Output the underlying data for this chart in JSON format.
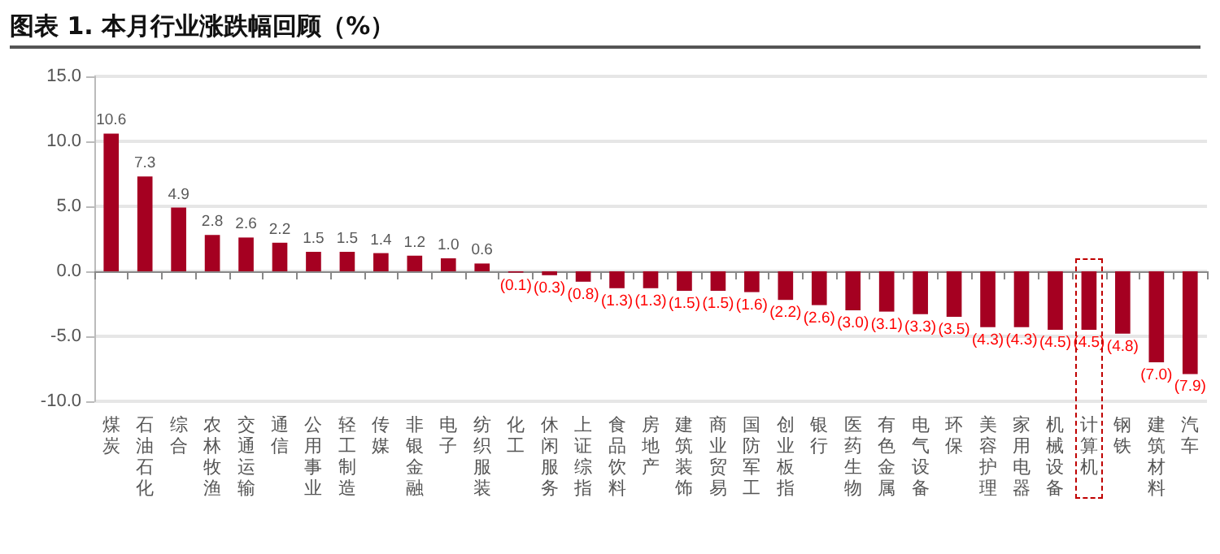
{
  "chart_data": {
    "type": "bar",
    "title": "图表 1. 本月行业涨跌幅回顾（%）",
    "categories": [
      "煤炭",
      "石油石化",
      "综合",
      "农林牧渔",
      "交通运输",
      "通信",
      "公用事业",
      "轻工制造",
      "传媒",
      "非银金融",
      "电子",
      "纺织服装",
      "化工",
      "休闲服务",
      "上证综指",
      "食品饮料",
      "房地产",
      "建筑装饰",
      "商业贸易",
      "国防军工",
      "创业板指",
      "银行",
      "医药生物",
      "有色金属",
      "电气设备",
      "环保",
      "美容护理",
      "家用电器",
      "机械设备",
      "计算机",
      "钢铁",
      "建筑材料",
      "汽车"
    ],
    "values": [
      10.6,
      7.3,
      4.9,
      2.8,
      2.6,
      2.2,
      1.5,
      1.5,
      1.4,
      1.2,
      1.0,
      0.6,
      -0.1,
      -0.3,
      -0.8,
      -1.3,
      -1.3,
      -1.5,
      -1.5,
      -1.6,
      -2.2,
      -2.6,
      -3.0,
      -3.1,
      -3.3,
      -3.5,
      -4.3,
      -4.3,
      -4.5,
      -4.5,
      -4.8,
      -7.0,
      -7.9
    ],
    "value_labels": [
      "10.6",
      "7.3",
      "4.9",
      "2.8",
      "2.6",
      "2.2",
      "1.5",
      "1.5",
      "1.4",
      "1.2",
      "1.0",
      "0.6",
      "(0.1)",
      "(0.3)",
      "(0.8)",
      "(1.3)",
      "(1.3)",
      "(1.5)",
      "(1.5)",
      "(1.6)",
      "(2.2)",
      "(2.6)",
      "(3.0)",
      "(3.1)",
      "(3.3)",
      "(3.5)",
      "(4.3)",
      "(4.3)",
      "(4.5)",
      "(4.5)",
      "(4.8)",
      "(7.0)",
      "(7.9)"
    ],
    "color": "#a50021",
    "ylim": [
      -10,
      15
    ],
    "yticks": [
      {
        "value": -10,
        "label": "-10.0"
      },
      {
        "value": -5,
        "label": "-5.0"
      },
      {
        "value": 0,
        "label": "0.0"
      },
      {
        "value": 5,
        "label": "5.0"
      },
      {
        "value": 10,
        "label": "10.0"
      },
      {
        "value": 15,
        "label": "15.0"
      }
    ],
    "grid": "y"
  }
}
